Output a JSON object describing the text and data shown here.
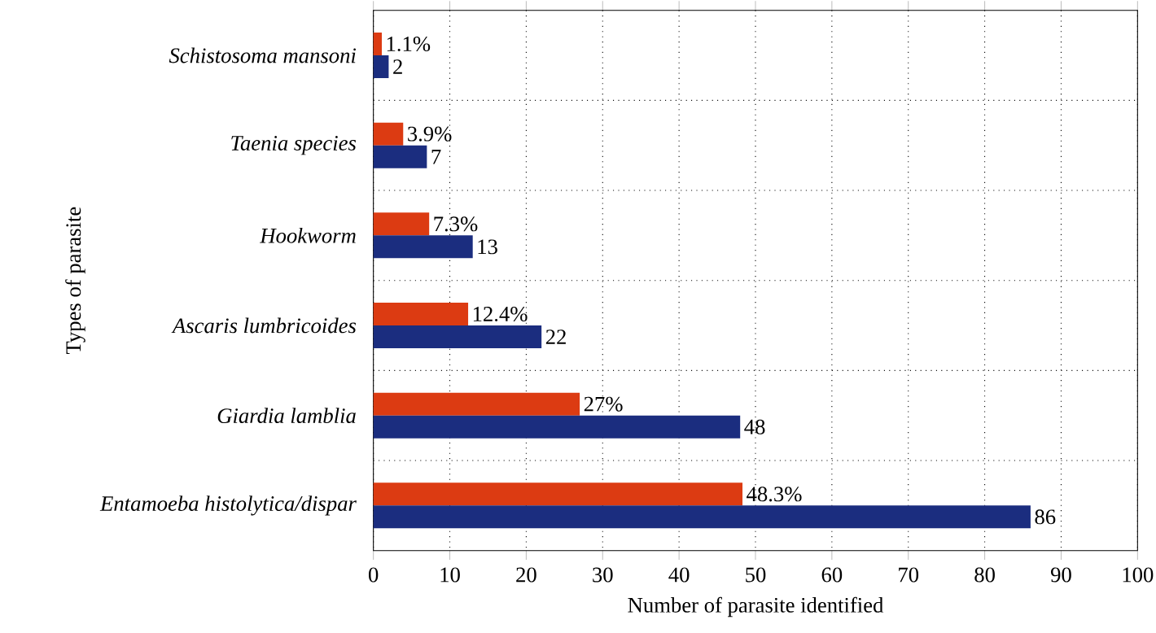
{
  "chart_data": {
    "type": "bar",
    "orientation": "horizontal",
    "xlabel": "Number of parasite identified",
    "ylabel": "Types of parasite",
    "categories": [
      "Schistosoma mansoni",
      "Taenia species",
      "Hookworm",
      "Ascaris lumbricoides",
      "Giardia lamblia",
      "Entamoeba histolytica/dispar"
    ],
    "series": [
      {
        "color": "#dc3b12",
        "values": [
          1.1,
          3.9,
          7.3,
          12.4,
          27,
          48.3
        ],
        "value_labels": [
          "1.1%",
          "3.9%",
          "7.3%",
          "12.4%",
          "27%",
          "48.3%"
        ]
      },
      {
        "color": "#1b2d7f",
        "values": [
          2,
          7,
          13,
          22,
          48,
          86
        ],
        "value_labels": [
          "2",
          "7",
          "13",
          "22",
          "48",
          "86"
        ]
      }
    ],
    "xlim": [
      0,
      100
    ],
    "xticks": [
      0,
      10,
      20,
      30,
      40,
      50,
      60,
      70,
      80,
      90,
      100
    ],
    "grid": true
  }
}
